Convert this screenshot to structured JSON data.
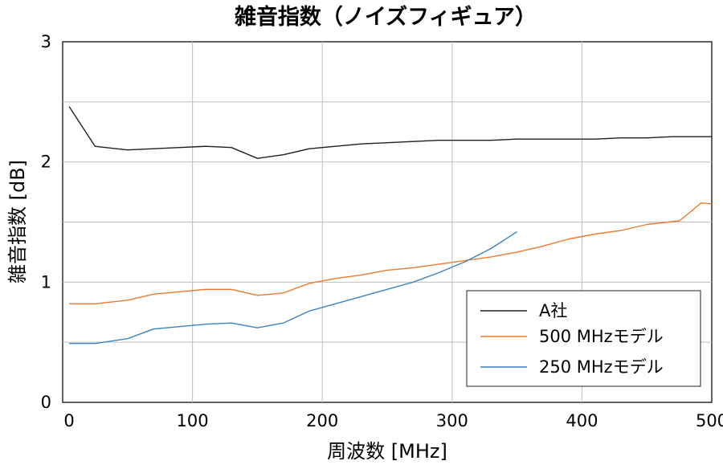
{
  "chart_data": {
    "type": "line",
    "title": "雑音指数（ノイズフィギュア）",
    "xlabel": "周波数 [MHz]",
    "ylabel": "雑音指数 [dB]",
    "xlim": [
      0,
      500
    ],
    "ylim": [
      0,
      3
    ],
    "x_ticks": [
      0,
      100,
      200,
      300,
      400,
      500
    ],
    "y_ticks": [
      0,
      1,
      2,
      3
    ],
    "grid": true,
    "legend_position": "bottom-right",
    "series": [
      {
        "name": "A社",
        "color": "#231f20",
        "points": [
          [
            5,
            2.46
          ],
          [
            25,
            2.13
          ],
          [
            50,
            2.1
          ],
          [
            70,
            2.11
          ],
          [
            90,
            2.12
          ],
          [
            110,
            2.13
          ],
          [
            130,
            2.12
          ],
          [
            150,
            2.03
          ],
          [
            170,
            2.06
          ],
          [
            190,
            2.11
          ],
          [
            210,
            2.13
          ],
          [
            230,
            2.15
          ],
          [
            250,
            2.16
          ],
          [
            270,
            2.17
          ],
          [
            290,
            2.18
          ],
          [
            310,
            2.18
          ],
          [
            330,
            2.18
          ],
          [
            350,
            2.19
          ],
          [
            370,
            2.19
          ],
          [
            390,
            2.19
          ],
          [
            410,
            2.19
          ],
          [
            430,
            2.2
          ],
          [
            450,
            2.2
          ],
          [
            470,
            2.21
          ],
          [
            490,
            2.21
          ],
          [
            500,
            2.21
          ]
        ]
      },
      {
        "name": "500 MHzモデル",
        "color": "#ee7a2d",
        "points": [
          [
            5,
            0.82
          ],
          [
            25,
            0.82
          ],
          [
            50,
            0.85
          ],
          [
            70,
            0.9
          ],
          [
            90,
            0.92
          ],
          [
            110,
            0.94
          ],
          [
            130,
            0.94
          ],
          [
            150,
            0.89
          ],
          [
            170,
            0.91
          ],
          [
            190,
            0.99
          ],
          [
            210,
            1.03
          ],
          [
            230,
            1.06
          ],
          [
            250,
            1.1
          ],
          [
            270,
            1.12
          ],
          [
            290,
            1.15
          ],
          [
            310,
            1.18
          ],
          [
            330,
            1.21
          ],
          [
            350,
            1.25
          ],
          [
            370,
            1.3
          ],
          [
            390,
            1.36
          ],
          [
            410,
            1.4
          ],
          [
            430,
            1.43
          ],
          [
            450,
            1.48
          ],
          [
            475,
            1.51
          ],
          [
            492,
            1.66
          ],
          [
            500,
            1.65
          ]
        ]
      },
      {
        "name": "250 MHzモデル",
        "color": "#3b83c3",
        "points": [
          [
            5,
            0.49
          ],
          [
            25,
            0.49
          ],
          [
            50,
            0.53
          ],
          [
            70,
            0.61
          ],
          [
            90,
            0.63
          ],
          [
            110,
            0.65
          ],
          [
            130,
            0.66
          ],
          [
            150,
            0.62
          ],
          [
            170,
            0.66
          ],
          [
            190,
            0.76
          ],
          [
            210,
            0.82
          ],
          [
            230,
            0.88
          ],
          [
            250,
            0.94
          ],
          [
            270,
            1.0
          ],
          [
            290,
            1.08
          ],
          [
            310,
            1.17
          ],
          [
            330,
            1.28
          ],
          [
            350,
            1.42
          ]
        ]
      }
    ]
  }
}
